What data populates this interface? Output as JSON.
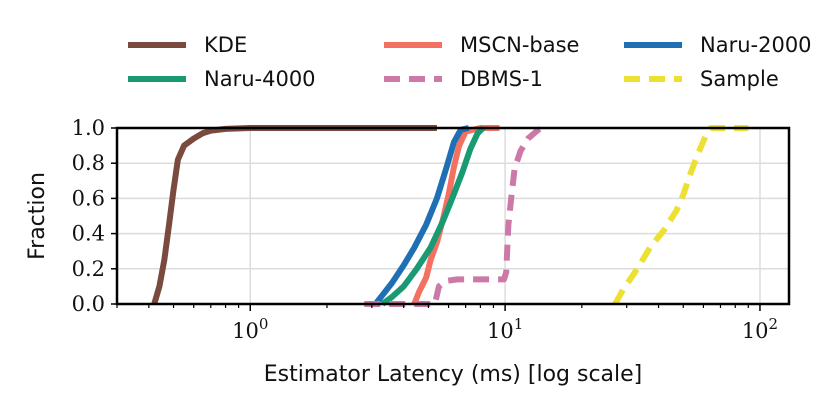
{
  "chart_data": {
    "type": "line",
    "subtype": "cdf",
    "title": "",
    "xlabel": "Estimator Latency (ms) [log scale]",
    "ylabel": "Fraction",
    "xscale": "log",
    "xlim": [
      0.3,
      130
    ],
    "ylim": [
      0.0,
      1.0
    ],
    "grid": true,
    "legend_position": "top",
    "x_ticks": [
      {
        "value": 1,
        "label_base": "10",
        "label_exp": "0"
      },
      {
        "value": 10,
        "label_base": "10",
        "label_exp": "1"
      },
      {
        "value": 100,
        "label_base": "10",
        "label_exp": "2"
      }
    ],
    "y_ticks": [
      {
        "value": 0.0,
        "label": "0.0"
      },
      {
        "value": 0.2,
        "label": "0.2"
      },
      {
        "value": 0.4,
        "label": "0.4"
      },
      {
        "value": 0.6,
        "label": "0.6"
      },
      {
        "value": 0.8,
        "label": "0.8"
      },
      {
        "value": 1.0,
        "label": "1.0"
      }
    ],
    "series": [
      {
        "name": "KDE",
        "color": "#7a4a3e",
        "dashed": false,
        "points": [
          [
            0.42,
            0.0
          ],
          [
            0.44,
            0.1
          ],
          [
            0.46,
            0.25
          ],
          [
            0.48,
            0.45
          ],
          [
            0.5,
            0.65
          ],
          [
            0.52,
            0.82
          ],
          [
            0.55,
            0.9
          ],
          [
            0.6,
            0.94
          ],
          [
            0.65,
            0.97
          ],
          [
            0.7,
            0.985
          ],
          [
            0.8,
            0.995
          ],
          [
            1.0,
            1.0
          ],
          [
            5.4,
            1.0
          ]
        ]
      },
      {
        "name": "MSCN-base",
        "color": "#f47060",
        "dashed": false,
        "points": [
          [
            4.4,
            0.0
          ],
          [
            4.6,
            0.07
          ],
          [
            4.9,
            0.15
          ],
          [
            5.1,
            0.25
          ],
          [
            5.4,
            0.35
          ],
          [
            5.7,
            0.48
          ],
          [
            6.0,
            0.62
          ],
          [
            6.3,
            0.78
          ],
          [
            6.6,
            0.9
          ],
          [
            7.0,
            0.98
          ],
          [
            8.0,
            1.0
          ],
          [
            9.5,
            1.0
          ]
        ]
      },
      {
        "name": "Naru-2000",
        "color": "#1f6fb4",
        "dashed": false,
        "points": [
          [
            3.1,
            0.0
          ],
          [
            3.3,
            0.05
          ],
          [
            3.6,
            0.12
          ],
          [
            4.0,
            0.22
          ],
          [
            4.4,
            0.32
          ],
          [
            4.9,
            0.45
          ],
          [
            5.4,
            0.6
          ],
          [
            5.9,
            0.78
          ],
          [
            6.3,
            0.92
          ],
          [
            6.7,
            0.99
          ],
          [
            7.2,
            1.0
          ]
        ]
      },
      {
        "name": "Naru-4000",
        "color": "#1a9a72",
        "dashed": false,
        "points": [
          [
            3.3,
            0.0
          ],
          [
            3.6,
            0.04
          ],
          [
            4.0,
            0.1
          ],
          [
            4.5,
            0.2
          ],
          [
            5.1,
            0.32
          ],
          [
            5.7,
            0.47
          ],
          [
            6.2,
            0.6
          ],
          [
            6.8,
            0.75
          ],
          [
            7.3,
            0.88
          ],
          [
            7.8,
            0.97
          ],
          [
            8.2,
            1.0
          ]
        ]
      },
      {
        "name": "DBMS-1",
        "color": "#cc79a7",
        "dashed": true,
        "points": [
          [
            2.8,
            0.0
          ],
          [
            5.3,
            0.0
          ],
          [
            5.5,
            0.1
          ],
          [
            5.8,
            0.13
          ],
          [
            6.5,
            0.14
          ],
          [
            9.9,
            0.14
          ],
          [
            10.1,
            0.18
          ],
          [
            10.3,
            0.45
          ],
          [
            10.6,
            0.62
          ],
          [
            10.9,
            0.77
          ],
          [
            11.5,
            0.87
          ],
          [
            12.3,
            0.94
          ],
          [
            13.5,
            0.99
          ],
          [
            14.3,
            1.0
          ]
        ]
      },
      {
        "name": "Sample",
        "color": "#ece133",
        "dashed": true,
        "points": [
          [
            27,
            0.0
          ],
          [
            29,
            0.08
          ],
          [
            33,
            0.2
          ],
          [
            37,
            0.32
          ],
          [
            42,
            0.42
          ],
          [
            47,
            0.53
          ],
          [
            50,
            0.62
          ],
          [
            53,
            0.73
          ],
          [
            57,
            0.85
          ],
          [
            61,
            0.95
          ],
          [
            64,
            1.0
          ],
          [
            90,
            1.0
          ]
        ]
      }
    ]
  }
}
